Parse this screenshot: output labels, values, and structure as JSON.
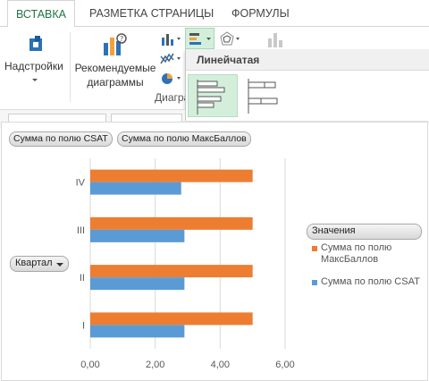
{
  "ribbon": {
    "tabs": [
      {
        "label": "ВСТАВКА",
        "active": true
      },
      {
        "label": "РАЗМЕТКА СТРАНИЦЫ",
        "active": false
      },
      {
        "label": "ФОРМУЛЫ",
        "active": false
      }
    ],
    "addins_label": "Надстройки",
    "recommended_label_line1": "Рекомендуемые",
    "recommended_label_line2": "диаграммы",
    "charts_group_label": "Диагра",
    "gallery_title": "Линейчатая",
    "accent_color": "#217346"
  },
  "chart_fields": {
    "value_field_1": "Сумма по полю CSAT",
    "value_field_2": "Сумма по полю МаксБаллов",
    "axis_field": "Квартал",
    "legend_field": "Значения"
  },
  "chart_data": {
    "type": "bar",
    "orientation": "horizontal",
    "categories": [
      "I",
      "II",
      "III",
      "IV"
    ],
    "series": [
      {
        "name": "Сумма по полю МаксБаллов",
        "values": [
          5,
          5,
          5,
          5
        ],
        "color": "#ed7d31"
      },
      {
        "name": "Сумма по полю CSAT",
        "values": [
          2.9,
          2.9,
          2.9,
          2.8
        ],
        "color": "#5b9bd5"
      }
    ],
    "xlim": [
      0,
      6
    ],
    "xticks": [
      "0,00",
      "2,00",
      "4,00",
      "6,00"
    ],
    "grid": true,
    "legend_position": "right"
  }
}
